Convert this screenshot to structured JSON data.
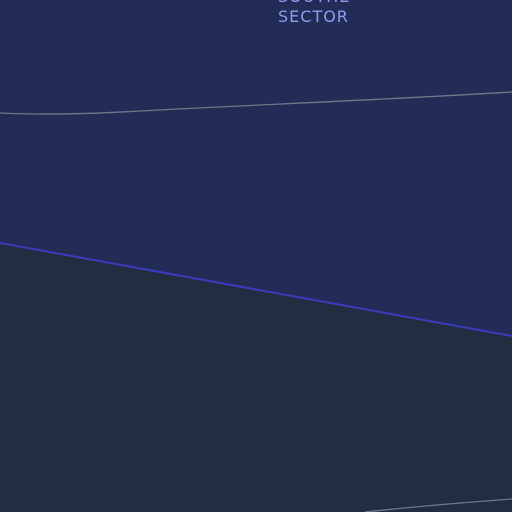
{
  "map": {
    "labels": {
      "cut_off_line": "SOUTHE",
      "sector": "SECTOR"
    },
    "colors": {
      "upper_region": "#222c56",
      "lower_region": "#222d41",
      "boundary_line": "#3a3cbd",
      "road_line": "#6f778a",
      "label_text": "#8f9cf0"
    }
  }
}
